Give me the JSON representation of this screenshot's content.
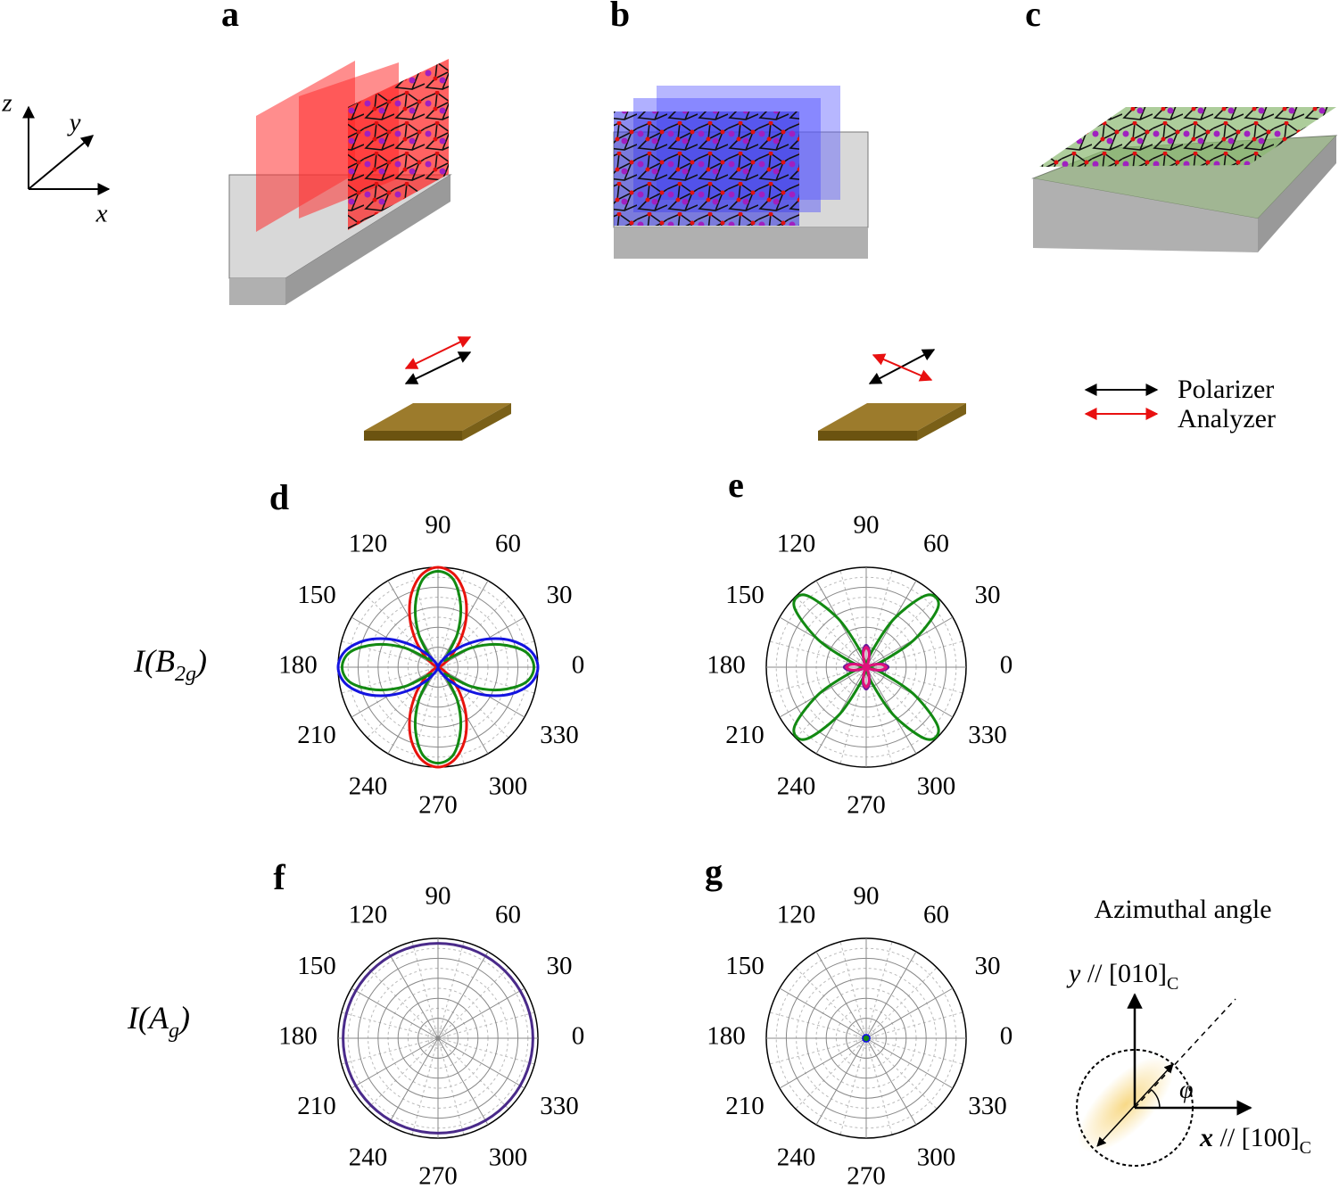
{
  "panel_labels": [
    "a",
    "b",
    "c",
    "d",
    "e",
    "f",
    "g"
  ],
  "axes": {
    "z": "z",
    "y": "y",
    "x": "x"
  },
  "legend": {
    "polarizer": "Polarizer",
    "analyzer": "Analyzer"
  },
  "row_labels": [
    {
      "main": "I(B",
      "sub": "2g",
      "close": ")"
    },
    {
      "main": "I(A",
      "sub": "g",
      "close": ")"
    }
  ],
  "azimuth": {
    "title": "Azimuthal angle",
    "y_axis": "y",
    "y_text": " // [010]",
    "y_sub": "C",
    "x_axis": "x",
    "x_text": " // [100]",
    "x_sub": "C",
    "angle": "φ"
  },
  "chart_data": [
    {
      "type": "polar",
      "theta_ticks": [
        0,
        30,
        60,
        90,
        120,
        150,
        180,
        210,
        240,
        270,
        300,
        330
      ],
      "rlim": [
        0,
        1
      ],
      "rticks": [
        0.2,
        0.4,
        0.6,
        0.8,
        1
      ],
      "series": [
        {
          "color": "#e8120c",
          "values": [
            0,
            0.001,
            0.014,
            0.063,
            0.171,
            0.344,
            0.563,
            0.78,
            0.941,
            1,
            0.941,
            0.78,
            0.563,
            0.344,
            0.171,
            0.063,
            0.014,
            0.001,
            0,
            0.001,
            0.014,
            0.063,
            0.171,
            0.344,
            0.563,
            0.78,
            0.941,
            1,
            0.941,
            0.78,
            0.563,
            0.344,
            0.171,
            0.063,
            0.014,
            0.001
          ]
        },
        {
          "color": "#128a12",
          "values": [
            0.96,
            0.889,
            0.662,
            0.39,
            0.126,
            0.126,
            0.39,
            0.662,
            0.889,
            0.96,
            0.889,
            0.662,
            0.39,
            0.126,
            0.126,
            0.39,
            0.662,
            0.889,
            0.96,
            0.889,
            0.662,
            0.39,
            0.126,
            0.126,
            0.39,
            0.662,
            0.889,
            0.96,
            0.889,
            0.662,
            0.39,
            0.126,
            0.126,
            0.39,
            0.662,
            0.889
          ]
        },
        {
          "color": "#1414e0",
          "values": [
            1,
            0.941,
            0.78,
            0.563,
            0.344,
            0.171,
            0.063,
            0.014,
            0.001,
            0,
            0.001,
            0.014,
            0.063,
            0.171,
            0.344,
            0.563,
            0.78,
            0.941,
            1,
            0.941,
            0.78,
            0.563,
            0.344,
            0.171,
            0.063,
            0.014,
            0.001,
            0,
            0.001,
            0.014,
            0.063,
            0.171,
            0.344,
            0.563,
            0.78,
            0.941
          ]
        }
      ]
    },
    {
      "type": "polar",
      "theta_ticks": [
        0,
        30,
        60,
        90,
        120,
        150,
        180,
        210,
        240,
        270,
        300,
        330
      ],
      "rlim": [
        0,
        1
      ],
      "rticks": [
        0.2,
        0.4,
        0.6,
        0.8,
        1
      ],
      "series": [
        {
          "color": "#128a12",
          "values": [
            0,
            0.014,
            0.171,
            0.563,
            0.941,
            0.941,
            0.563,
            0.171,
            0.014,
            0,
            0.014,
            0.171,
            0.563,
            0.941,
            0.941,
            0.563,
            0.171,
            0.014,
            0,
            0.014,
            0.171,
            0.563,
            0.941,
            0.941,
            0.563,
            0.171,
            0.014,
            0,
            0.014,
            0.171,
            0.563,
            0.941,
            0.941,
            0.563,
            0.171,
            0.014
          ]
        },
        {
          "color": "#6a1a9a",
          "values": [
            0.22,
            0.172,
            0.076,
            0.014,
            0,
            0,
            0.014,
            0.076,
            0.172,
            0.22,
            0.172,
            0.076,
            0.014,
            0,
            0,
            0.014,
            0.076,
            0.172,
            0.22,
            0.172,
            0.076,
            0.014,
            0,
            0,
            0.014,
            0.076,
            0.172,
            0.22,
            0.172,
            0.076,
            0.014,
            0,
            0,
            0.014,
            0.076,
            0.172
          ]
        },
        {
          "color": "#e0127a",
          "values": [
            0.2,
            0.156,
            0.069,
            0.013,
            0,
            0,
            0.013,
            0.069,
            0.156,
            0.2,
            0.156,
            0.069,
            0.013,
            0,
            0,
            0.013,
            0.069,
            0.156,
            0.2,
            0.156,
            0.069,
            0.013,
            0,
            0,
            0.013,
            0.069,
            0.156,
            0.2,
            0.156,
            0.069,
            0.013,
            0,
            0,
            0.013,
            0.069,
            0.156
          ]
        }
      ]
    },
    {
      "type": "polar",
      "theta_ticks": [
        0,
        30,
        60,
        90,
        120,
        150,
        180,
        210,
        240,
        270,
        300,
        330
      ],
      "rlim": [
        0,
        1
      ],
      "rticks": [
        0.2,
        0.4,
        0.6,
        0.8,
        1
      ],
      "series": [
        {
          "color": "#4a2a8a",
          "values": [
            0.95,
            0.95,
            0.95,
            0.95,
            0.95,
            0.95,
            0.95,
            0.95,
            0.95,
            0.95,
            0.95,
            0.95,
            0.95,
            0.95,
            0.95,
            0.95,
            0.95,
            0.95,
            0.95,
            0.95,
            0.95,
            0.95,
            0.95,
            0.95,
            0.95,
            0.95,
            0.95,
            0.95,
            0.95,
            0.95,
            0.95,
            0.95,
            0.95,
            0.95,
            0.95,
            0.95
          ]
        }
      ]
    },
    {
      "type": "polar",
      "theta_ticks": [
        0,
        30,
        60,
        90,
        120,
        150,
        180,
        210,
        240,
        270,
        300,
        330
      ],
      "rlim": [
        0,
        1
      ],
      "rticks": [
        0.2,
        0.4,
        0.6,
        0.8,
        1
      ],
      "series": [
        {
          "color": "#1414e0",
          "values": [
            0.03,
            0.03,
            0.03,
            0.03,
            0.03,
            0.03,
            0.03,
            0.03,
            0.03,
            0.03,
            0.03,
            0.03,
            0.03,
            0.03,
            0.03,
            0.03,
            0.03,
            0.03,
            0.03,
            0.03,
            0.03,
            0.03,
            0.03,
            0.03,
            0.03,
            0.03,
            0.03,
            0.03,
            0.03,
            0.03,
            0.03,
            0.03,
            0.03,
            0.03,
            0.03,
            0.03
          ]
        },
        {
          "color": "#128a12",
          "values": [
            0.015,
            0.015,
            0.015,
            0.015,
            0.015,
            0.015,
            0.015,
            0.015,
            0.015,
            0.015,
            0.015,
            0.015,
            0.015,
            0.015,
            0.015,
            0.015,
            0.015,
            0.015,
            0.015,
            0.015,
            0.015,
            0.015,
            0.015,
            0.015,
            0.015,
            0.015,
            0.015,
            0.015,
            0.015,
            0.015,
            0.015,
            0.015,
            0.015,
            0.015,
            0.015,
            0.015
          ]
        }
      ]
    }
  ]
}
